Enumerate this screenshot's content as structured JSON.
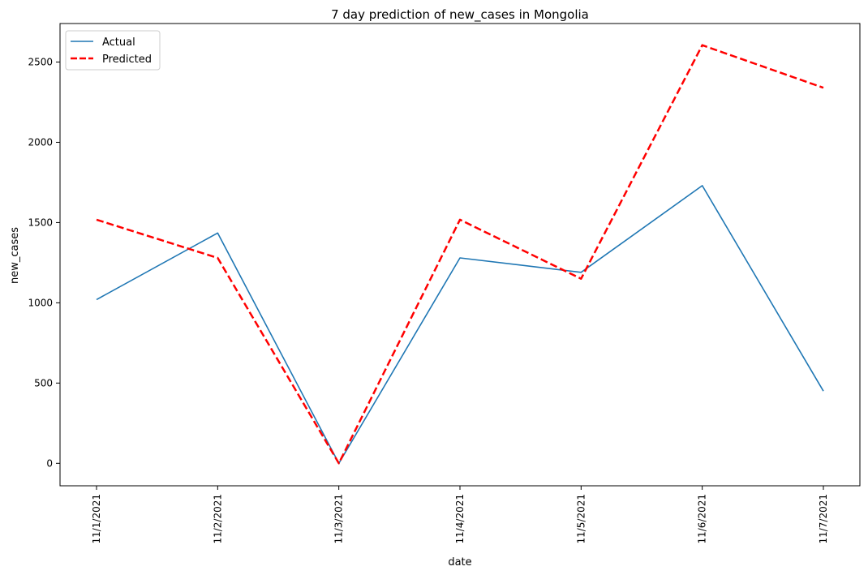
{
  "chart_data": {
    "type": "line",
    "title": "7 day prediction of new_cases in Mongolia",
    "xlabel": "date",
    "ylabel": "new_cases",
    "categories": [
      "11/1/2021",
      "11/2/2021",
      "11/3/2021",
      "11/4/2021",
      "11/5/2021",
      "11/6/2021",
      "11/7/2021"
    ],
    "ylim": [
      -140,
      2740
    ],
    "yticks": [
      0,
      500,
      1000,
      1500,
      2000,
      2500
    ],
    "grid": false,
    "legend_position": "top-left",
    "series": [
      {
        "name": "Actual",
        "color": "#1f77b4",
        "style": "solid",
        "values": [
          1020,
          1435,
          0,
          1280,
          1190,
          1730,
          450
        ]
      },
      {
        "name": "Predicted",
        "color": "#ff0000",
        "style": "dashed",
        "values": [
          1518,
          1280,
          0,
          1518,
          1150,
          2605,
          2340
        ]
      }
    ]
  }
}
